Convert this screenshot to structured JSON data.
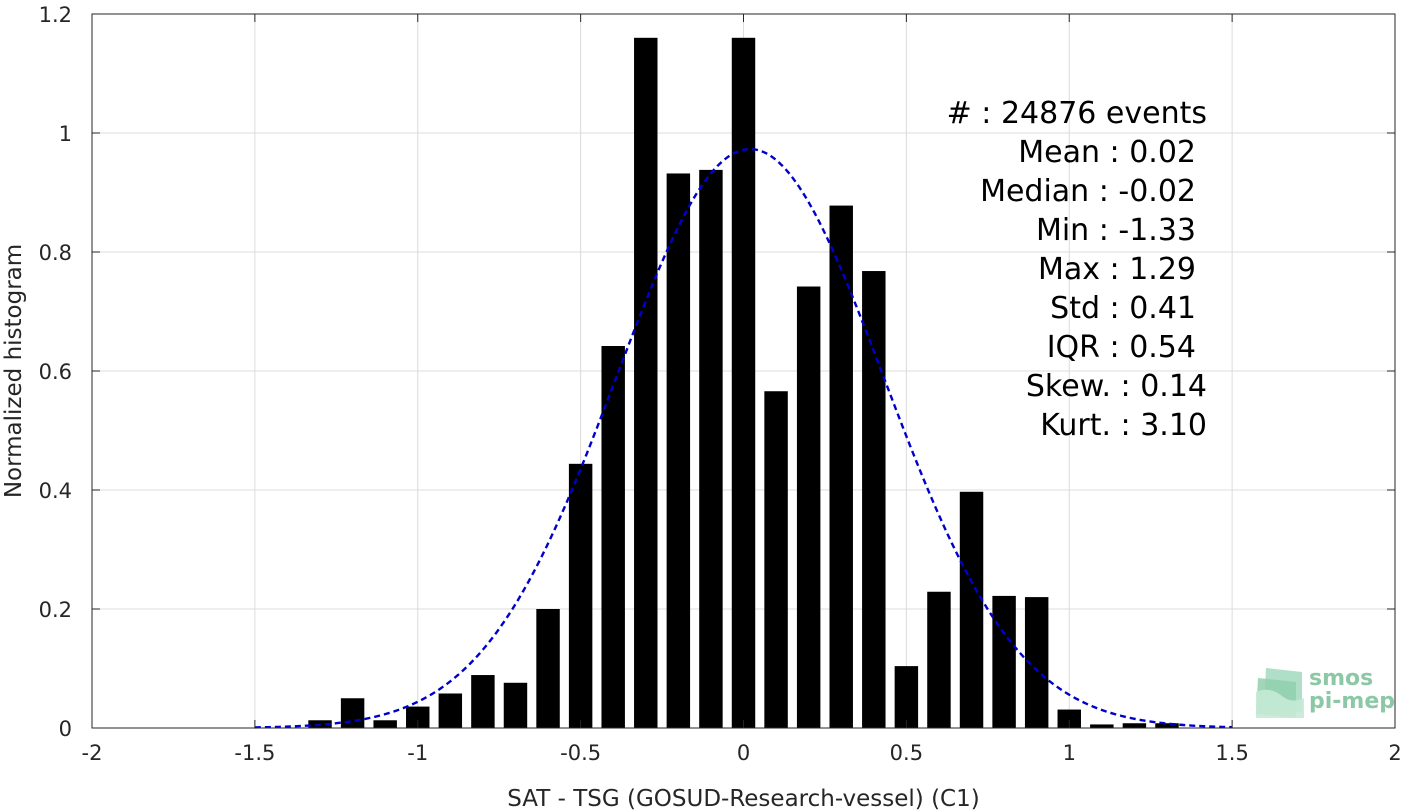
{
  "chart_data": {
    "type": "bar",
    "xlabel": "SAT - TSG (GOSUD-Research-vessel) (C1)",
    "ylabel": "Normalized histogram",
    "xlim": [
      -2,
      2
    ],
    "ylim": [
      0,
      1.2
    ],
    "xticks": [
      -2,
      -1.5,
      -1,
      -0.5,
      0,
      0.5,
      1,
      1.5,
      2
    ],
    "xtick_labels": [
      "-2",
      "-1.5",
      "-1",
      "-0.5",
      "0",
      "0.5",
      "1",
      "1.5",
      "2"
    ],
    "yticks": [
      0,
      0.2,
      0.4,
      0.6,
      0.8,
      1,
      1.2
    ],
    "ytick_labels": [
      "0",
      "0.2",
      "0.4",
      "0.6",
      "0.8",
      "1",
      "1.2"
    ],
    "grid": true,
    "bin_width": 0.1,
    "bar_color": "#000000",
    "bars": [
      {
        "x": -1.3,
        "y": 0.013
      },
      {
        "x": -1.2,
        "y": 0.05
      },
      {
        "x": -1.1,
        "y": 0.013
      },
      {
        "x": -1.0,
        "y": 0.036
      },
      {
        "x": -0.9,
        "y": 0.058
      },
      {
        "x": -0.8,
        "y": 0.089
      },
      {
        "x": -0.7,
        "y": 0.076
      },
      {
        "x": -0.6,
        "y": 0.2
      },
      {
        "x": -0.5,
        "y": 0.444
      },
      {
        "x": -0.4,
        "y": 0.642
      },
      {
        "x": -0.3,
        "y": 1.16
      },
      {
        "x": -0.2,
        "y": 0.932
      },
      {
        "x": -0.1,
        "y": 0.938
      },
      {
        "x": 0.0,
        "y": 1.16
      },
      {
        "x": 0.1,
        "y": 0.566
      },
      {
        "x": 0.2,
        "y": 0.742
      },
      {
        "x": 0.3,
        "y": 0.878
      },
      {
        "x": 0.4,
        "y": 0.768
      },
      {
        "x": 0.5,
        "y": 0.104
      },
      {
        "x": 0.6,
        "y": 0.229
      },
      {
        "x": 0.7,
        "y": 0.397
      },
      {
        "x": 0.8,
        "y": 0.222
      },
      {
        "x": 0.9,
        "y": 0.22
      },
      {
        "x": 1.0,
        "y": 0.031
      },
      {
        "x": 1.1,
        "y": 0.006
      },
      {
        "x": 1.2,
        "y": 0.008
      },
      {
        "x": 1.3,
        "y": 0.008
      }
    ],
    "fit_curve": {
      "type": "gaussian",
      "mean": 0.02,
      "std": 0.41,
      "x_range": [
        -1.5,
        1.5
      ],
      "color": "#0000cc",
      "style": "dashed"
    },
    "annotations": [
      "#  : 24876 events",
      "Mean : 0.02",
      "Median : -0.02",
      "Min : -1.33",
      "Max : 1.29",
      "Std : 0.41",
      "IQR : 0.54",
      "Skew. : 0.14",
      "Kurt. : 3.10"
    ]
  },
  "logo": {
    "line1": "smos",
    "line2": "pi-mep"
  }
}
